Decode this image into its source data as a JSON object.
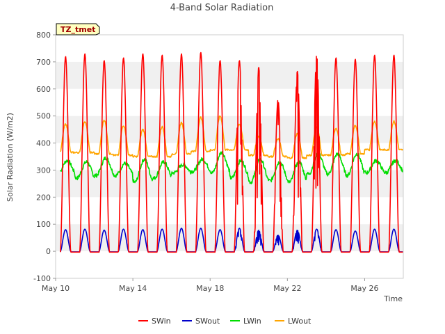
{
  "chart_data": {
    "type": "line",
    "title": "4-Band Solar Radiation",
    "xlabel": "Time",
    "ylabel": "Solar Radiation (W/m2)",
    "ylim": [
      -100,
      800
    ],
    "yticks": [
      -100,
      0,
      100,
      200,
      300,
      400,
      500,
      600,
      700,
      800
    ],
    "xticks": [
      {
        "label": "May 10",
        "day": 0
      },
      {
        "label": "May 14",
        "day": 4
      },
      {
        "label": "May 18",
        "day": 8
      },
      {
        "label": "May 22",
        "day": 12
      },
      {
        "label": "May 26",
        "day": 16
      }
    ],
    "xlim_days": [
      0,
      18
    ],
    "grid": "horizontal bands",
    "legend_position": "bottom",
    "annotation": "TZ_tmet",
    "series": [
      {
        "name": "SWin",
        "color": "#ff0000",
        "unit": "W/m2",
        "daily_peak": [
          720,
          730,
          705,
          715,
          730,
          725,
          730,
          735,
          705,
          705,
          680,
          560,
          665,
          725,
          715,
          710,
          725
        ]
      },
      {
        "name": "SWout",
        "color": "#0000cc",
        "unit": "W/m2",
        "daily_peak": [
          80,
          82,
          78,
          82,
          80,
          82,
          85,
          85,
          80,
          85,
          78,
          60,
          78,
          82,
          80,
          75,
          82
        ]
      },
      {
        "name": "LWin",
        "color": "#00dd00",
        "unit": "W/m2",
        "daily_max": [
          335,
          330,
          345,
          325,
          340,
          330,
          320,
          340,
          365,
          335,
          340,
          330,
          330,
          360,
          360,
          360,
          335
        ],
        "daily_min": [
          285,
          270,
          280,
          280,
          255,
          270,
          290,
          295,
          290,
          270,
          255,
          260,
          255,
          285,
          285,
          280,
          290
        ]
      },
      {
        "name": "LWout",
        "color": "#ffa500",
        "unit": "W/m2",
        "daily_max": [
          470,
          480,
          485,
          465,
          450,
          460,
          475,
          495,
          500,
          470,
          425,
          415,
          435,
          460,
          455,
          465,
          480
        ],
        "daily_min": [
          365,
          365,
          360,
          355,
          350,
          350,
          360,
          370,
          375,
          375,
          355,
          350,
          345,
          355,
          355,
          360,
          375
        ]
      }
    ]
  }
}
